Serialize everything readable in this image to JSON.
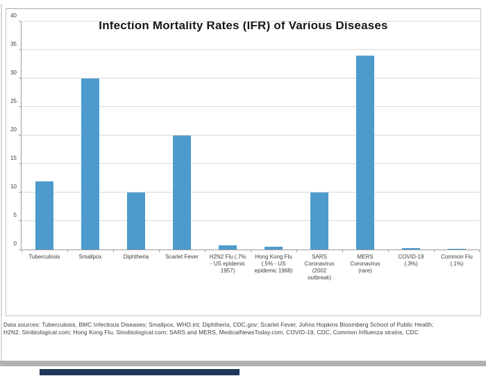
{
  "chart": {
    "title": "Infection Mortality Rates (IFR) of Various Diseases",
    "bar_color": "#4d9bcd",
    "gridline_color": "#d8d8d8",
    "axis_color": "#9a9a9a"
  },
  "chart_data": {
    "type": "bar",
    "title": "Infection Mortality Rates (IFR) of Various Diseases",
    "categories": [
      "Tuberculosis",
      "Smallpox",
      "Diphtheria",
      "Scarlet Fever",
      "H2N2 Flu (.7% - US epidemic 1957)",
      "Hong Kong Flu (.5% - US epidemic 1968)",
      "SARS Coronavirus (2002 outbreak)",
      "MERS Coronavirus (rare)",
      "COVID-19 (.3%)",
      "Common Flu (.1%)"
    ],
    "category_label_lines": [
      [
        "Tuberculosis"
      ],
      [
        "Smallpox"
      ],
      [
        "Diphtheria"
      ],
      [
        "Scarlet Fever"
      ],
      [
        "H2N2 Flu (.7%",
        "- US epidemic",
        "1957)"
      ],
      [
        "Hong Kong Flu",
        "(.5% - US",
        "epidemic 1968)"
      ],
      [
        "SARS",
        "Coronavirus",
        "(2002",
        "outbreak)"
      ],
      [
        "MERS",
        "Coronavirus",
        "(rare)"
      ],
      [
        "COVID-19",
        "(.3%)"
      ],
      [
        "Common Flu",
        "(.1%)"
      ]
    ],
    "values": [
      12,
      30,
      10,
      20,
      0.7,
      0.5,
      10,
      34,
      0.3,
      0.1
    ],
    "xlabel": "",
    "ylabel": "",
    "ylim": [
      0,
      40
    ],
    "y_ticks": [
      0,
      5,
      10,
      15,
      20,
      25,
      30,
      35,
      40
    ],
    "grid": true,
    "legend": "none"
  },
  "footer": {
    "line1": "Data sources: Tuberculosis, BMC Infectious Diseases; Smallpox, WHO.int; Diphtheria, CDC.gov; Scarlet Fever, Johns Hopkins Bloomberg School of Public Health;",
    "line2": "H2N2, Sinibiological.com; Hong Kong Flu, Sinobiological.com; SARS and MERS, MedicalNewsToday.com, COVID-19, CDC, Common Influenza strains, CDC"
  },
  "decor": {
    "divider_color": "#b2b2b2",
    "bottom_accent_color": "#20375c"
  }
}
